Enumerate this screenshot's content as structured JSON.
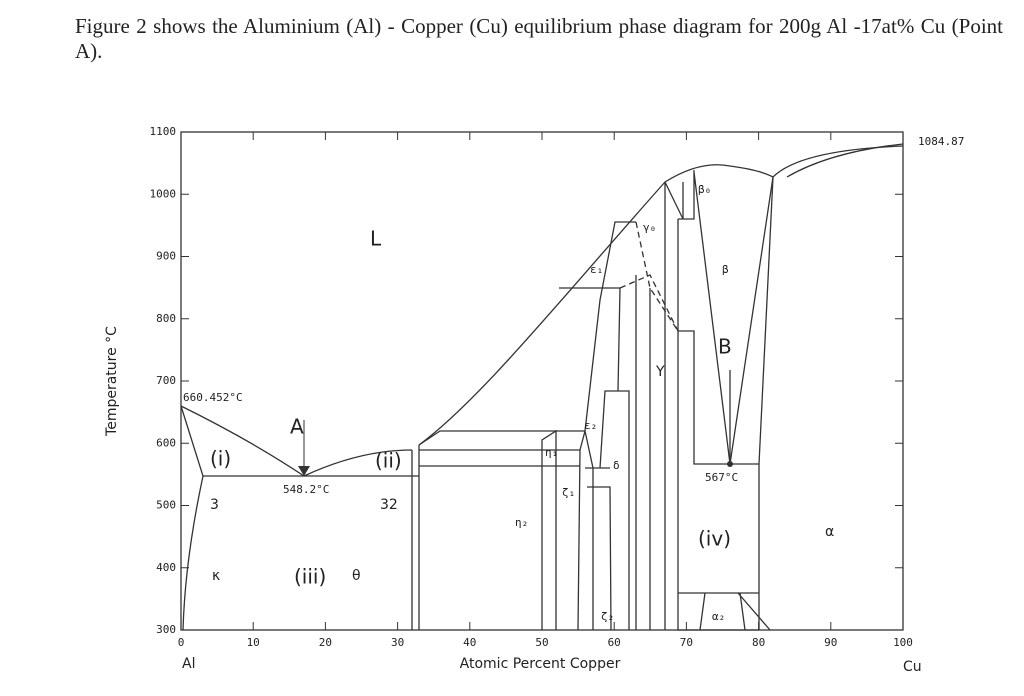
{
  "header": {
    "text": "Figure 2 shows the Aluminium (Al) - Copper (Cu) equilibrium phase diagram for 200g Al -17at% Cu (Point A)."
  },
  "figure": {
    "y_axis_label": "Temperature °C",
    "x_axis_label": "Atomic Percent Copper",
    "x_left": "Al",
    "x_right": "Cu",
    "x_ticks": [
      "0",
      "10",
      "20",
      "30",
      "40",
      "50",
      "60",
      "70",
      "80",
      "90",
      "100"
    ],
    "y_ticks": [
      "300",
      "400",
      "500",
      "600",
      "700",
      "800",
      "900",
      "1000",
      "1100"
    ],
    "annotations": [
      "L",
      "660.452°C",
      "A",
      "548.2°C",
      "(i)",
      "(ii)",
      "3",
      "32",
      "(iii)",
      "κ",
      "θ",
      "Y",
      "B",
      "567°C",
      "(iv)",
      "α",
      "1084.87",
      "β₀",
      "γ₀",
      "ε₁",
      "β",
      "ε₂",
      "η₁",
      "δ",
      "ζ₁",
      "η₂",
      "ζ₂",
      "α₂"
    ]
  }
}
